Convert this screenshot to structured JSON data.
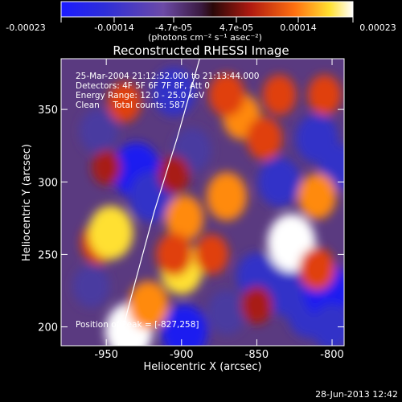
{
  "chart_data": {
    "type": "heatmap",
    "title": "Reconstructed RHESSI Image",
    "xlabel": "Heliocentric X (arcsec)",
    "ylabel": "Heliocentric Y (arcsec)",
    "xlim": [
      -980,
      -792
    ],
    "ylim": [
      187,
      385
    ],
    "xticks": [
      -950,
      -900,
      -850,
      -800
    ],
    "yticks": [
      200,
      250,
      300,
      350
    ],
    "colorbar": {
      "ticks": [
        "-0.00023",
        "-0.00014",
        "-4.7e-05",
        "4.7e-05",
        "0.00014",
        "0.00023"
      ],
      "unit_text": "(photons cm⁻² s⁻¹ asec⁻²)",
      "range": [
        -0.00023,
        0.00023
      ]
    },
    "annotations": [
      "25-Mar-2004 21:12:52.000 to 21:13:44.000",
      "Detectors: 4F 5F 6F 7F 8F, Att 0",
      "Energy Range: 12.0 - 25.0 keV",
      "Clean     Total counts: 587",
      "Position of Peak = [-827,258]"
    ],
    "limb_curve": {
      "color": "#ffffff",
      "points": [
        [
          -942,
          187
        ],
        [
          -931,
          230
        ],
        [
          -918,
          280
        ],
        [
          -903,
          330
        ],
        [
          -888,
          385
        ]
      ]
    },
    "peak": [
      -827,
      258
    ],
    "emission_blobs": [
      {
        "x": -955,
        "y": 258,
        "v": 0.00012
      },
      {
        "x": -947,
        "y": 265,
        "v": 0.0002
      },
      {
        "x": -935,
        "y": 197,
        "v": 0.00022
      },
      {
        "x": -922,
        "y": 215,
        "v": 0.00016
      },
      {
        "x": -900,
        "y": 240,
        "v": 0.00018
      },
      {
        "x": -898,
        "y": 275,
        "v": 0.00014
      },
      {
        "x": -905,
        "y": 250,
        "v": 0.00012
      },
      {
        "x": -870,
        "y": 290,
        "v": 0.00016
      },
      {
        "x": -860,
        "y": 345,
        "v": 0.00014
      },
      {
        "x": -870,
        "y": 360,
        "v": 0.00012
      },
      {
        "x": -845,
        "y": 330,
        "v": 0.00012
      },
      {
        "x": -835,
        "y": 360,
        "v": 0.0001
      },
      {
        "x": -827,
        "y": 258,
        "v": 0.00023
      },
      {
        "x": -810,
        "y": 240,
        "v": 0.00012
      },
      {
        "x": -810,
        "y": 290,
        "v": 0.00014
      },
      {
        "x": -805,
        "y": 360,
        "v": 0.0001
      },
      {
        "x": -880,
        "y": 250,
        "v": 0.0001
      },
      {
        "x": -950,
        "y": 310,
        "v": 6e-05
      },
      {
        "x": -850,
        "y": 215,
        "v": 8e-05
      },
      {
        "x": -938,
        "y": 355,
        "v": 0.0001
      },
      {
        "x": -905,
        "y": 305,
        "v": 8e-05
      }
    ],
    "absorption_blobs": [
      {
        "x": -930,
        "y": 308,
        "v": -0.0002
      },
      {
        "x": -920,
        "y": 290,
        "v": -0.00016
      },
      {
        "x": -905,
        "y": 362,
        "v": -0.00014
      },
      {
        "x": -893,
        "y": 322,
        "v": -0.0001
      },
      {
        "x": -955,
        "y": 335,
        "v": -0.0001
      },
      {
        "x": -960,
        "y": 228,
        "v": -8e-05
      },
      {
        "x": -898,
        "y": 197,
        "v": -0.00018
      },
      {
        "x": -850,
        "y": 235,
        "v": -0.00012
      },
      {
        "x": -835,
        "y": 300,
        "v": -0.00014
      },
      {
        "x": -830,
        "y": 225,
        "v": -0.00016
      },
      {
        "x": -815,
        "y": 210,
        "v": -0.00016
      },
      {
        "x": -803,
        "y": 225,
        "v": -0.0002
      },
      {
        "x": -795,
        "y": 310,
        "v": -0.00012
      },
      {
        "x": -810,
        "y": 330,
        "v": -0.00014
      },
      {
        "x": -800,
        "y": 200,
        "v": -0.00012
      },
      {
        "x": -870,
        "y": 210,
        "v": -0.0001
      }
    ]
  },
  "footer": {
    "timestamp": "28-Jun-2013 12:42"
  }
}
